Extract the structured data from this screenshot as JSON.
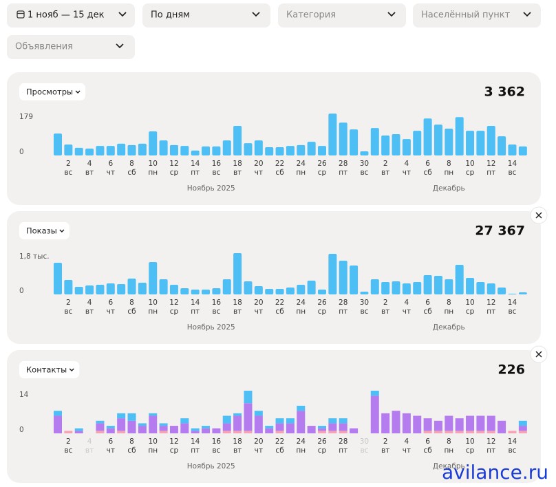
{
  "filters": [
    "1 нояб — 15 дек",
    "По дням",
    "Категория",
    "Населённый пункт",
    "Объявления"
  ],
  "chart_data": [
    {
      "type": "bar",
      "label": "Просмотры",
      "total": "3 362",
      "color": "#4dbff5",
      "categories": [
        null,
        "2",
        null,
        "4",
        null,
        "6",
        null,
        "8",
        null,
        "10",
        null,
        "12",
        null,
        "14",
        null,
        "16",
        null,
        "18",
        null,
        "20",
        null,
        "22",
        null,
        "24",
        null,
        "26",
        null,
        "28",
        null,
        "30",
        null,
        "2",
        null,
        "4",
        null,
        "6",
        null,
        "8",
        null,
        "10",
        null,
        "12",
        null,
        "14",
        null
      ],
      "weekdays": [
        null,
        "вс",
        null,
        "вт",
        null,
        "чт",
        null,
        "сб",
        null,
        "пн",
        null,
        "ср",
        null,
        "пт",
        null,
        "вс",
        null,
        "вт",
        null,
        "чт",
        null,
        "сб",
        null,
        "пн",
        null,
        "ср",
        null,
        "пт",
        null,
        "вс",
        null,
        "вт",
        null,
        "чт",
        null,
        "сб",
        null,
        "пн",
        null,
        "ср",
        null,
        "пт",
        null,
        "вс",
        null
      ],
      "months": [
        "Ноябрь 2025",
        "Декабрь"
      ],
      "values": [
        112,
        56,
        39,
        35,
        49,
        49,
        60,
        53,
        60,
        123,
        77,
        53,
        49,
        25,
        46,
        46,
        77,
        151,
        63,
        77,
        42,
        42,
        49,
        53,
        70,
        49,
        214,
        168,
        133,
        21,
        140,
        102,
        109,
        84,
        126,
        189,
        158,
        137,
        196,
        126,
        126,
        151,
        98,
        56,
        46
      ],
      "ylim": [
        0,
        218
      ],
      "yticks": [
        0,
        179
      ]
    },
    {
      "type": "bar",
      "label": "Показы",
      "total": "27 367",
      "color": "#4dbff5",
      "categories": [
        null,
        "2",
        null,
        "4",
        null,
        "6",
        null,
        "8",
        null,
        "10",
        null,
        "12",
        null,
        "14",
        null,
        "16",
        null,
        "18",
        null,
        "20",
        null,
        "22",
        null,
        "24",
        null,
        "26",
        null,
        "28",
        null,
        "30",
        null,
        "2",
        null,
        "4",
        null,
        "6",
        null,
        "8",
        null,
        "10",
        null,
        "12",
        null,
        "14",
        null
      ],
      "weekdays": [
        null,
        "вс",
        null,
        "вт",
        null,
        "чт",
        null,
        "сб",
        null,
        "пн",
        null,
        "ср",
        null,
        "пт",
        null,
        "вс",
        null,
        "вт",
        null,
        "чт",
        null,
        "сб",
        null,
        "пн",
        null,
        "ср",
        null,
        "пт",
        null,
        "вс",
        null,
        "вт",
        null,
        "чт",
        null,
        "сб",
        null,
        "пн",
        null,
        "ср",
        null,
        "пт",
        null,
        "вс",
        null
      ],
      "months": [
        "Ноябрь 2025",
        "Декабрь"
      ],
      "values": [
        1656,
        756,
        396,
        468,
        504,
        576,
        540,
        828,
        612,
        1692,
        792,
        504,
        324,
        252,
        252,
        324,
        792,
        2160,
        684,
        432,
        288,
        288,
        360,
        504,
        720,
        252,
        2124,
        1764,
        1512,
        144,
        792,
        648,
        684,
        576,
        648,
        1008,
        972,
        792,
        1548,
        864,
        648,
        576,
        360,
        36,
        108
      ],
      "ylim": [
        0,
        2230
      ],
      "yticks": [
        0,
        {
          "value": 1800,
          "label": "1,8 тыс."
        }
      ]
    },
    {
      "type": "stacked_bar",
      "label": "Контакты",
      "total": "226",
      "categories": [
        null,
        "2",
        null,
        "4",
        null,
        "6",
        null,
        "8",
        null,
        "10",
        null,
        "12",
        null,
        "14",
        null,
        "16",
        null,
        "18",
        null,
        "20",
        null,
        "22",
        null,
        "24",
        null,
        "26",
        null,
        "28",
        null,
        "30",
        null,
        "2",
        null,
        "4",
        null,
        "6",
        null,
        "8",
        null,
        "10",
        null,
        "12",
        null,
        "14",
        null
      ],
      "weekdays": [
        null,
        "вс",
        null,
        "вт",
        null,
        "чт",
        null,
        "сб",
        null,
        "пн",
        null,
        "ср",
        null,
        "пт",
        null,
        "вс",
        null,
        "вт",
        null,
        "чт",
        null,
        "сб",
        null,
        "пн",
        null,
        "ср",
        null,
        "пт",
        null,
        "вс",
        null,
        "вт",
        null,
        "чт",
        null,
        "сб",
        null,
        "пн",
        null,
        "ср",
        null,
        "пт",
        null,
        "вс",
        null
      ],
      "months": [
        "Ноябрь 2025",
        "Декабрь"
      ],
      "series": [
        {
          "color": "#f5a3b5",
          "values": [
            0,
            1,
            0,
            0,
            1,
            0,
            1,
            0,
            0,
            0,
            1,
            0,
            0,
            0,
            0,
            0,
            1,
            1,
            1,
            0,
            0,
            1,
            0,
            0,
            0,
            1,
            1,
            1,
            0,
            0,
            0,
            0,
            0,
            0,
            0,
            1,
            1,
            1,
            1,
            1,
            1,
            1,
            0,
            1,
            1
          ]
        },
        {
          "color": "#b57cf0",
          "values": [
            7,
            0,
            1,
            0,
            3,
            2,
            5,
            5,
            3,
            7,
            2,
            3,
            4,
            1,
            2,
            2,
            3,
            6,
            11,
            7,
            2,
            3,
            4,
            9,
            3,
            1,
            3,
            3,
            2,
            0,
            15,
            8,
            9,
            8,
            7,
            5,
            4,
            6,
            5,
            6,
            6,
            6,
            5,
            0,
            2
          ]
        },
        {
          "color": "#4dbff5",
          "values": [
            2,
            0,
            1,
            0,
            1,
            1,
            2,
            3,
            1,
            1,
            1,
            0,
            2,
            1,
            1,
            0,
            3,
            1,
            5,
            2,
            1,
            2,
            2,
            2,
            0,
            1,
            2,
            2,
            0,
            0,
            2,
            0,
            0,
            0,
            0,
            0,
            0,
            0,
            0,
            0,
            0,
            0,
            0,
            0,
            2
          ]
        }
      ],
      "ylim": [
        0,
        17
      ],
      "yticks": [
        0,
        14
      ]
    }
  ],
  "watermark": "avilance.ru"
}
